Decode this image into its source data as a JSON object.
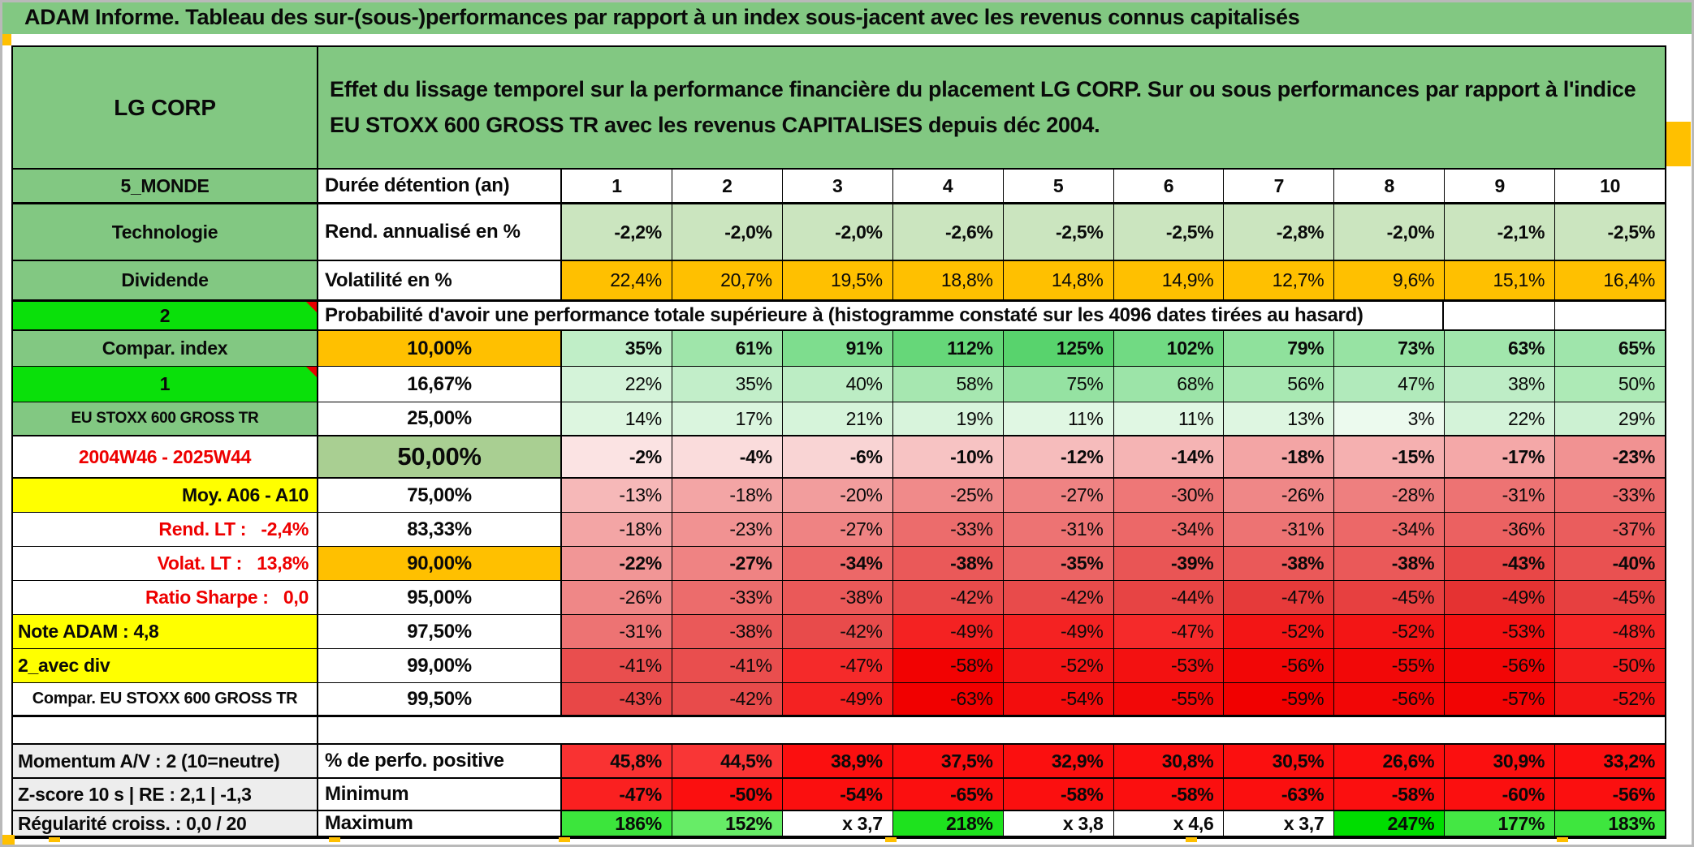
{
  "title": "ADAM Informe. Tableau des sur-(sous-)performances par rapport à un index sous-jacent avec les revenus connus capitalisés",
  "header": {
    "name": "LG CORP",
    "description": "Effet du lissage temporel sur la performance financière du placement LG CORP. Sur ou sous performances par rapport à l'indice EU STOXX 600 GROSS TR avec les revenus CAPITALISES depuis déc 2004."
  },
  "colors": {
    "band_green": "#82c882",
    "bright_green": "#0ae00a",
    "orange": "#ffc000",
    "yellow": "#ffff00",
    "sage": "#a9cf92",
    "gray_label": "#ededed",
    "red_text": "#ee0000",
    "rend_row_green": "#cbe5bf"
  },
  "rows": [
    {
      "id": "duree",
      "a": "5_MONDE",
      "b": "Durée détention (an)",
      "values": [
        "1",
        "2",
        "3",
        "4",
        "5",
        "6",
        "7",
        "8",
        "9",
        "10"
      ],
      "cell_bg": [
        "#ffffff",
        "#ffffff",
        "#ffffff",
        "#ffffff",
        "#ffffff",
        "#ffffff",
        "#ffffff",
        "#ffffff",
        "#ffffff",
        "#ffffff"
      ]
    },
    {
      "id": "rend",
      "a": "Technologie",
      "b": "Rend. annualisé en %",
      "values": [
        "-2,2%",
        "-2,0%",
        "-2,0%",
        "-2,6%",
        "-2,5%",
        "-2,5%",
        "-2,8%",
        "-2,0%",
        "-2,1%",
        "-2,5%"
      ],
      "cell_bg": [
        "#cbe5bf",
        "#cbe5bf",
        "#cbe5bf",
        "#cbe5bf",
        "#cbe5bf",
        "#cbe5bf",
        "#cbe5bf",
        "#cbe5bf",
        "#cbe5bf",
        "#cbe5bf"
      ]
    },
    {
      "id": "volat",
      "a": "Dividende",
      "b": "Volatilité en %",
      "values": [
        "22,4%",
        "20,7%",
        "19,5%",
        "18,8%",
        "14,8%",
        "14,9%",
        "12,7%",
        "9,6%",
        "15,1%",
        "16,4%"
      ],
      "cell_bg": [
        "#ffc000",
        "#ffc000",
        "#ffc000",
        "#ffc000",
        "#ffc000",
        "#ffc000",
        "#ffc000",
        "#ffc000",
        "#ffc000",
        "#ffc000"
      ]
    },
    {
      "id": "proba",
      "a": "2",
      "span_text": "Probabilité d'avoir une performance totale supérieure à (histogramme constaté sur les 4096 dates tirées au hasard)",
      "values": [
        "",
        ""
      ],
      "cell_bg": [
        "#ffffff",
        "#ffffff"
      ]
    },
    {
      "id": "p10",
      "a": "Compar. index",
      "b": "10,00%",
      "b_bg": "#ffc000",
      "values": [
        "35%",
        "61%",
        "91%",
        "112%",
        "125%",
        "102%",
        "79%",
        "73%",
        "63%",
        "65%"
      ],
      "cell_bg": [
        "#c0eec7",
        "#9fe5aa",
        "#7edd8e",
        "#66d779",
        "#58d36d",
        "#71da83",
        "#8fe19c",
        "#97e3a3",
        "#a1e6ac",
        "#9fe5ab"
      ]
    },
    {
      "id": "p1667",
      "a": "1",
      "b": "16,67%",
      "values": [
        "22%",
        "35%",
        "40%",
        "58%",
        "75%",
        "68%",
        "56%",
        "47%",
        "38%",
        "50%"
      ],
      "cell_bg": [
        "#d4f3d9",
        "#c2eec9",
        "#bcedc4",
        "#a6e7b0",
        "#95e2a2",
        "#9ce4a8",
        "#a8e8b2",
        "#b1eabb",
        "#beedc6",
        "#adeab6"
      ]
    },
    {
      "id": "p25",
      "a": "EU STOXX 600 GROSS TR",
      "b": "25,00%",
      "values": [
        "14%",
        "17%",
        "21%",
        "19%",
        "11%",
        "11%",
        "13%",
        "3%",
        "22%",
        "29%"
      ],
      "cell_bg": [
        "#ddf6e0",
        "#daf5de",
        "#d6f4da",
        "#d8f4dc",
        "#e0f7e3",
        "#e0f7e3",
        "#def6e1",
        "#ecfaee",
        "#d4f3d9",
        "#ccf1d2"
      ]
    },
    {
      "id": "p50",
      "a": "2004W46 - 2025W44",
      "b": "50,00%",
      "b_bg": "#a9cf92",
      "values": [
        "-2%",
        "-4%",
        "-6%",
        "-10%",
        "-12%",
        "-14%",
        "-18%",
        "-15%",
        "-17%",
        "-23%"
      ],
      "cell_bg": [
        "#fbe3e3",
        "#fadcdc",
        "#f9d4d4",
        "#f7c3c3",
        "#f6bcbc",
        "#f5b4b4",
        "#f3a5a5",
        "#f5b0b0",
        "#f4a8a8",
        "#f19292"
      ]
    },
    {
      "id": "p75",
      "a": "Moy. A06 - A10",
      "b": "75,00%",
      "values": [
        "-13%",
        "-18%",
        "-20%",
        "-25%",
        "-27%",
        "-30%",
        "-26%",
        "-28%",
        "-31%",
        "-33%"
      ],
      "cell_bg": [
        "#f6b8b8",
        "#f3a5a5",
        "#f29d9d",
        "#f08a8a",
        "#ef8383",
        "#ee7777",
        "#ef8787",
        "#ee7f7f",
        "#ed7373",
        "#ec6c6c"
      ]
    },
    {
      "id": "p8333",
      "a": "Rend. LT :   -2,4%",
      "b": "83,33%",
      "values": [
        "-18%",
        "-23%",
        "-27%",
        "-33%",
        "-31%",
        "-34%",
        "-31%",
        "-34%",
        "-36%",
        "-37%"
      ],
      "cell_bg": [
        "#f3a5a5",
        "#f19292",
        "#ef8383",
        "#ec6c6c",
        "#ed7373",
        "#ec6868",
        "#ed7373",
        "#ec6868",
        "#eb6161",
        "#ea5d5d"
      ]
    },
    {
      "id": "p90",
      "a": "Volat. LT :   13,8%",
      "b": "90,00%",
      "b_bg": "#ffc000",
      "values": [
        "-22%",
        "-27%",
        "-34%",
        "-38%",
        "-35%",
        "-39%",
        "-38%",
        "-38%",
        "-43%",
        "-40%"
      ],
      "cell_bg": [
        "#f19696",
        "#ef8383",
        "#ec6868",
        "#ea5959",
        "#eb6464",
        "#e95555",
        "#ea5959",
        "#ea5959",
        "#e84747",
        "#e95151"
      ]
    },
    {
      "id": "p95",
      "a": "Ratio Sharpe :   0,0",
      "b": "95,00%",
      "values": [
        "-26%",
        "-33%",
        "-38%",
        "-42%",
        "-42%",
        "-44%",
        "-47%",
        "-45%",
        "-49%",
        "-45%"
      ],
      "cell_bg": [
        "#ef8787",
        "#ec6c6c",
        "#ea5959",
        "#e84b4b",
        "#e84b4b",
        "#e74444",
        "#e63a3a",
        "#e74040",
        "#e53232",
        "#e74040"
      ]
    },
    {
      "id": "p975",
      "a": "Note ADAM : 4,8",
      "b": "97,50%",
      "values": [
        "-31%",
        "-38%",
        "-42%",
        "-49%",
        "-49%",
        "-47%",
        "-52%",
        "-52%",
        "-53%",
        "-48%"
      ],
      "cell_bg": [
        "#ed7373",
        "#ea5959",
        "#e84b4b",
        "#f42222",
        "#f42222",
        "#f52a2a",
        "#f31515",
        "#f31515",
        "#f31111",
        "#f52626"
      ]
    },
    {
      "id": "p99",
      "a": "2_avec div",
      "b": "99,00%",
      "values": [
        "-41%",
        "-41%",
        "-47%",
        "-58%",
        "-52%",
        "-53%",
        "-56%",
        "-55%",
        "-56%",
        "-50%"
      ],
      "cell_bg": [
        "#e94e4e",
        "#e94e4e",
        "#f52a2a",
        "#f20202",
        "#f31515",
        "#f31111",
        "#f20606",
        "#f20808",
        "#f20606",
        "#f41d1d"
      ]
    },
    {
      "id": "p995",
      "a": "Compar. EU STOXX 600 GROSS TR",
      "b": "99,50%",
      "values": [
        "-43%",
        "-42%",
        "-49%",
        "-63%",
        "-54%",
        "-55%",
        "-59%",
        "-56%",
        "-57%",
        "-52%"
      ],
      "cell_bg": [
        "#e84747",
        "#e84b4b",
        "#f42222",
        "#f10000",
        "#f30d0d",
        "#f20808",
        "#f10000",
        "#f20606",
        "#f20404",
        "#f31515"
      ]
    },
    {
      "id": "spacer",
      "a": "",
      "values": [],
      "cell_bg": []
    },
    {
      "id": "perf",
      "a": "Momentum A/V : 2 (10=neutre)",
      "b": "% de perfo. positive",
      "values": [
        "45,8%",
        "44,5%",
        "38,9%",
        "37,5%",
        "32,9%",
        "30,8%",
        "30,5%",
        "26,6%",
        "30,9%",
        "33,2%"
      ],
      "cell_bg": [
        "#f93232",
        "#f93636",
        "#fb0f0f",
        "#fb0f0f",
        "#fb0f0f",
        "#fb0f0f",
        "#fb0f0f",
        "#fb0f0f",
        "#fb0f0f",
        "#fb0f0f"
      ]
    },
    {
      "id": "min",
      "a": "Z-score 10 s | RE : 2,1 | -1,3",
      "b": "Minimum",
      "values": [
        "-47%",
        "-50%",
        "-54%",
        "-65%",
        "-58%",
        "-58%",
        "-63%",
        "-58%",
        "-60%",
        "-56%"
      ],
      "cell_bg": [
        "#fa2020",
        "#fb0f0f",
        "#fb0f0f",
        "#fb0f0f",
        "#fb0f0f",
        "#fb0f0f",
        "#fb0f0f",
        "#fb0f0f",
        "#fb0f0f",
        "#fb0f0f"
      ]
    },
    {
      "id": "max",
      "a": "Régularité croiss. : 0,0 / 20",
      "b": "Maximum",
      "values": [
        "186%",
        "152%",
        "x 3,7",
        "218%",
        "x 3,8",
        "x 4,6",
        "x 3,7",
        "247%",
        "177%",
        "183%"
      ],
      "cell_bg": [
        "#3ce53c",
        "#67ec67",
        "#ffffff",
        "#1ee21e",
        "#ffffff",
        "#ffffff",
        "#ffffff",
        "#00dd00",
        "#44e744",
        "#3ee63e"
      ]
    }
  ]
}
